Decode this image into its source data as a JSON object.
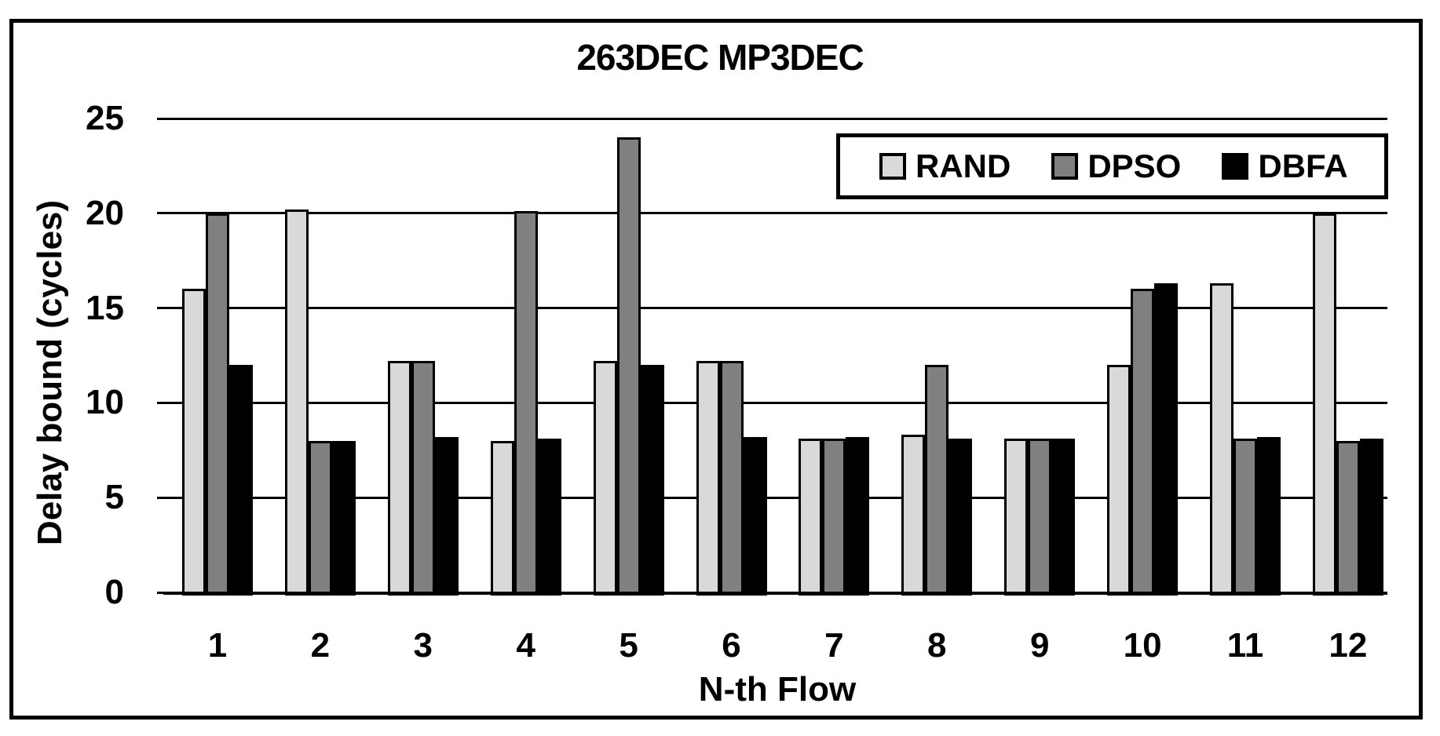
{
  "figure": {
    "background": "#ffffff",
    "border_color": "#000000"
  },
  "chart_data": {
    "type": "bar",
    "title": "263DEC MP3DEC",
    "xlabel": "N-th Flow",
    "ylabel": "Delay bound (cycles)",
    "categories": [
      "1",
      "2",
      "3",
      "4",
      "5",
      "6",
      "7",
      "8",
      "9",
      "10",
      "11",
      "12"
    ],
    "series": [
      {
        "name": "RAND",
        "color": "#D9D9D9",
        "values": [
          16,
          20.2,
          12.2,
          8,
          12.2,
          12.2,
          8.1,
          8.3,
          8.1,
          12,
          16.3,
          20
        ]
      },
      {
        "name": "DPSO",
        "color": "#808080",
        "values": [
          20,
          8,
          12.2,
          20.1,
          24,
          12.2,
          8.1,
          12,
          8.1,
          16,
          8.1,
          8
        ]
      },
      {
        "name": "DBFA",
        "color": "#000000",
        "values": [
          12,
          8,
          8.2,
          8.1,
          12,
          8.2,
          8.2,
          8.1,
          8.1,
          16.3,
          8.2,
          8.1
        ]
      }
    ],
    "ylim": [
      0,
      25
    ],
    "yticks": [
      0,
      5,
      10,
      15,
      20,
      25
    ],
    "grid": true,
    "legend_position": "top-right"
  }
}
